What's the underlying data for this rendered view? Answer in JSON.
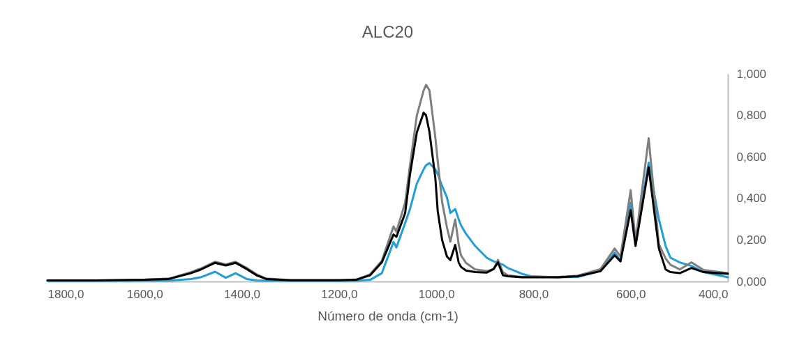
{
  "chart_data": {
    "type": "line",
    "title": "ALC20",
    "xlabel": "Número de onda (cm-1)",
    "x": [
      1800,
      1700,
      1650,
      1600,
      1550,
      1505,
      1485,
      1455,
      1433,
      1413,
      1390,
      1370,
      1350,
      1300,
      1200,
      1165,
      1136,
      1112,
      1088,
      1082,
      1064,
      1054,
      1040,
      1026,
      1021,
      1014,
      1002,
      997,
      988,
      978,
      971,
      961,
      954,
      949,
      939,
      920,
      896,
      882,
      873,
      863,
      853,
      824,
      805,
      750,
      709,
      662,
      633,
      621,
      600,
      590,
      563,
      542,
      528,
      518,
      499,
      475,
      450,
      400
    ],
    "series": [
      {
        "color": "#1f9fd6",
        "values": [
          0.003,
          0.003,
          0.003,
          0.003,
          0.004,
          0.012,
          0.02,
          0.047,
          0.018,
          0.04,
          0.012,
          0.005,
          0.003,
          0.003,
          0.003,
          0.003,
          0.008,
          0.04,
          0.19,
          0.164,
          0.282,
          0.35,
          0.472,
          0.54,
          0.56,
          0.57,
          0.54,
          0.517,
          0.46,
          0.405,
          0.33,
          0.349,
          0.3,
          0.27,
          0.23,
          0.171,
          0.114,
          0.097,
          0.09,
          0.081,
          0.065,
          0.037,
          0.025,
          0.02,
          0.022,
          0.05,
          0.14,
          0.1,
          0.38,
          0.2,
          0.573,
          0.3,
          0.17,
          0.114,
          0.092,
          0.075,
          0.045,
          0.02
        ]
      },
      {
        "color": "#7f7f7f",
        "values": [
          0.005,
          0.005,
          0.007,
          0.009,
          0.014,
          0.045,
          0.062,
          0.095,
          0.082,
          0.095,
          0.065,
          0.035,
          0.014,
          0.007,
          0.007,
          0.009,
          0.035,
          0.1,
          0.265,
          0.24,
          0.38,
          0.561,
          0.8,
          0.92,
          0.947,
          0.92,
          0.696,
          0.58,
          0.383,
          0.26,
          0.192,
          0.299,
          0.18,
          0.125,
          0.09,
          0.058,
          0.05,
          0.06,
          0.104,
          0.045,
          0.03,
          0.022,
          0.022,
          0.022,
          0.028,
          0.06,
          0.159,
          0.12,
          0.44,
          0.194,
          0.69,
          0.18,
          0.11,
          0.08,
          0.058,
          0.092,
          0.055,
          0.04
        ]
      },
      {
        "color": "#000000",
        "values": [
          0.005,
          0.005,
          0.007,
          0.008,
          0.012,
          0.04,
          0.057,
          0.09,
          0.077,
          0.09,
          0.06,
          0.03,
          0.012,
          0.006,
          0.006,
          0.008,
          0.03,
          0.092,
          0.226,
          0.215,
          0.33,
          0.517,
          0.718,
          0.813,
          0.8,
          0.72,
          0.5,
          0.339,
          0.2,
          0.12,
          0.103,
          0.176,
          0.092,
          0.07,
          0.053,
          0.045,
          0.043,
          0.06,
          0.092,
          0.03,
          0.025,
          0.02,
          0.02,
          0.02,
          0.025,
          0.05,
          0.126,
          0.097,
          0.343,
          0.171,
          0.55,
          0.159,
          0.058,
          0.045,
          0.04,
          0.065,
          0.045,
          0.037
        ]
      }
    ],
    "xlim": [
      1800,
      400
    ],
    "xticks": [
      {
        "value": 1800,
        "label": "1800,0"
      },
      {
        "value": 1600,
        "label": "1600,0"
      },
      {
        "value": 1400,
        "label": "1400,0"
      },
      {
        "value": 1200,
        "label": "1200,0"
      },
      {
        "value": 1000,
        "label": "1000,0"
      },
      {
        "value": 800,
        "label": "800,0"
      },
      {
        "value": 600,
        "label": "600,0"
      },
      {
        "value": 400,
        "label": "400,0"
      }
    ],
    "ylim": [
      0,
      1
    ],
    "yticks": [
      {
        "value": 0,
        "label": "0,000"
      },
      {
        "value": 0.2,
        "label": "0,200"
      },
      {
        "value": 0.4,
        "label": "0,400"
      },
      {
        "value": 0.6,
        "label": "0,600"
      },
      {
        "value": 0.8,
        "label": "0,800"
      },
      {
        "value": 1,
        "label": "1,000"
      }
    ],
    "grid": false,
    "legend": false,
    "marker": "none",
    "line_style": "solid"
  }
}
